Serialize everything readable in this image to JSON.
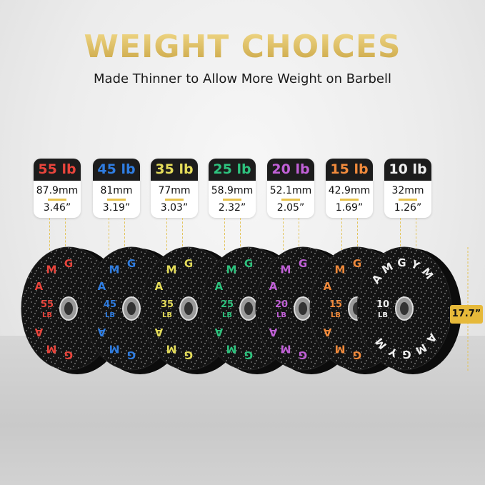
{
  "title": "WEIGHT CHOICES",
  "subtitle": "Made Thinner to Allow More Weight on Barbell",
  "brand": "AMGYM",
  "diameter": "17.7”",
  "plates": [
    {
      "weight": "55 lb",
      "num": "55",
      "unit": "LB",
      "mm": "87.9mm",
      "inch": "3.46”",
      "color": "#e8453c"
    },
    {
      "weight": "45 lb",
      "num": "45",
      "unit": "LB",
      "mm": "81mm",
      "inch": "3.19”",
      "color": "#2f7de1"
    },
    {
      "weight": "35 lb",
      "num": "35",
      "unit": "LB",
      "mm": "77mm",
      "inch": "3.03”",
      "color": "#e4dc5a"
    },
    {
      "weight": "25 lb",
      "num": "25",
      "unit": "LB",
      "mm": "58.9mm",
      "inch": "2.32”",
      "color": "#2ec27e"
    },
    {
      "weight": "20 lb",
      "num": "20",
      "unit": "LB",
      "mm": "52.1mm",
      "inch": "2.05”",
      "color": "#c060d6"
    },
    {
      "weight": "15 lb",
      "num": "15",
      "unit": "LB",
      "mm": "42.9mm",
      "inch": "1.69”",
      "color": "#f08a3c"
    },
    {
      "weight": "10 lb",
      "num": "10",
      "unit": "LB",
      "mm": "32mm",
      "inch": "1.26”",
      "color": "#eeeeee"
    }
  ]
}
